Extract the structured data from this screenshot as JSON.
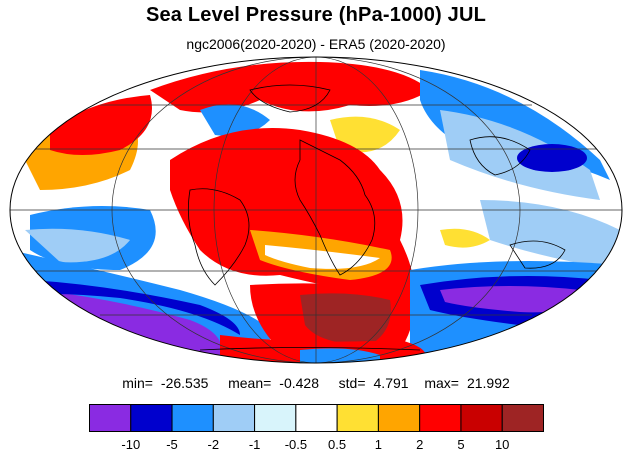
{
  "title": "Sea Level Pressure (hPa-1000) JUL",
  "subtitle": "ngc2006(2020-2020) - ERA5 (2020-2020)",
  "stats": {
    "min_label": "min=",
    "min": "-26.535",
    "mean_label": "mean=",
    "mean": "-0.428",
    "std_label": "std=",
    "std": "4.791",
    "max_label": "max=",
    "max": "21.992"
  },
  "colorbar": {
    "colors": [
      "#8a2be2",
      "#0000cd",
      "#1e90ff",
      "#9fcdf6",
      "#d8f4fb",
      "#ffffff",
      "#ffe033",
      "#ffa500",
      "#ff0000",
      "#c90000",
      "#9e2424"
    ],
    "labels": [
      "-10",
      "-5",
      "-2",
      "-1",
      "-0.5",
      "0.5",
      "1",
      "2",
      "5",
      "10"
    ]
  }
}
